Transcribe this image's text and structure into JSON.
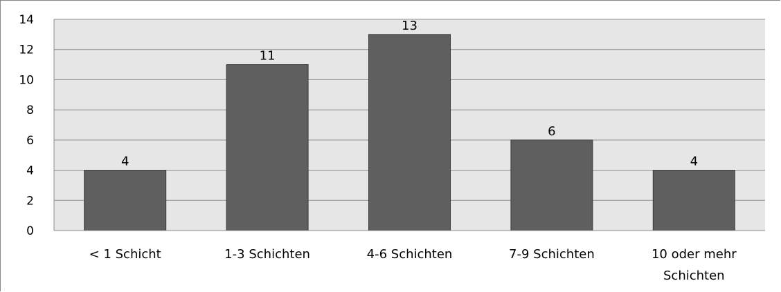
{
  "chart_data": {
    "type": "bar",
    "title": "",
    "xlabel": "",
    "ylabel": "",
    "categories": [
      [
        "< 1 Schicht"
      ],
      [
        "1-3 Schichten"
      ],
      [
        "4-6 Schichten"
      ],
      [
        "7-9 Schichten"
      ],
      [
        "10 oder mehr",
        "Schichten"
      ]
    ],
    "values": [
      4,
      11,
      13,
      6,
      4
    ],
    "ylim": [
      0,
      14
    ],
    "yticks": [
      0,
      2,
      4,
      6,
      8,
      10,
      12,
      14
    ],
    "grid": true,
    "legend": "none",
    "colors": {
      "bar": "#5f5f5f",
      "bar_border": "#3a3a3a",
      "plot_background": "#e6e6e6",
      "gridline": "#8c8c8c"
    }
  }
}
